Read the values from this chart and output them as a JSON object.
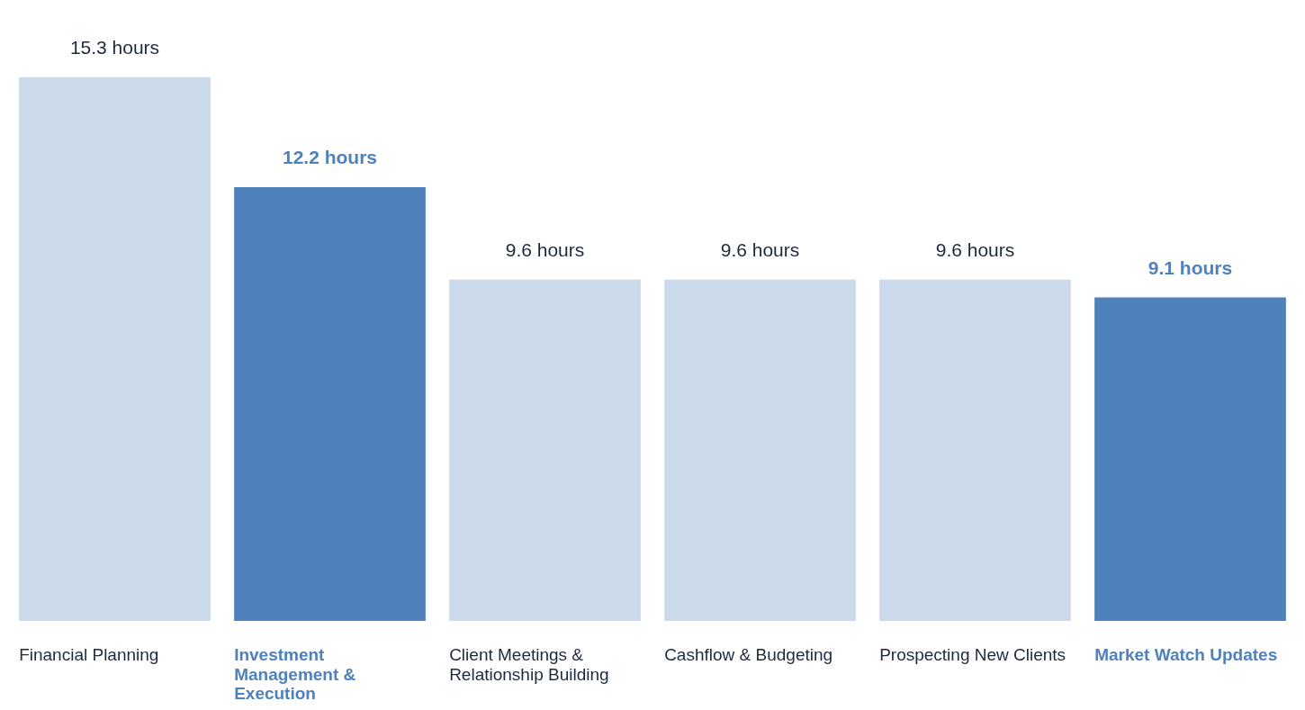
{
  "chart_data": {
    "type": "bar",
    "categories": [
      "Financial Planning",
      "Investment Management & Execution",
      "Client Meetings & Relationship Building",
      "Cashflow & Budgeting",
      "Prospecting New Clients",
      "Market Watch Updates"
    ],
    "values": [
      15.3,
      12.2,
      9.6,
      9.6,
      9.6,
      9.1
    ],
    "colors": [
      "#cbdaeb",
      "#4f81bd",
      "#cbdaeb",
      "#cbdaeb",
      "#cbdaeb",
      "#4f81bd"
    ],
    "value_labels": [
      "15.3 hours",
      "12.2 hours",
      "9.6 hours",
      "9.6 hours",
      "9.6 hours",
      "9.1 hours"
    ]
  }
}
